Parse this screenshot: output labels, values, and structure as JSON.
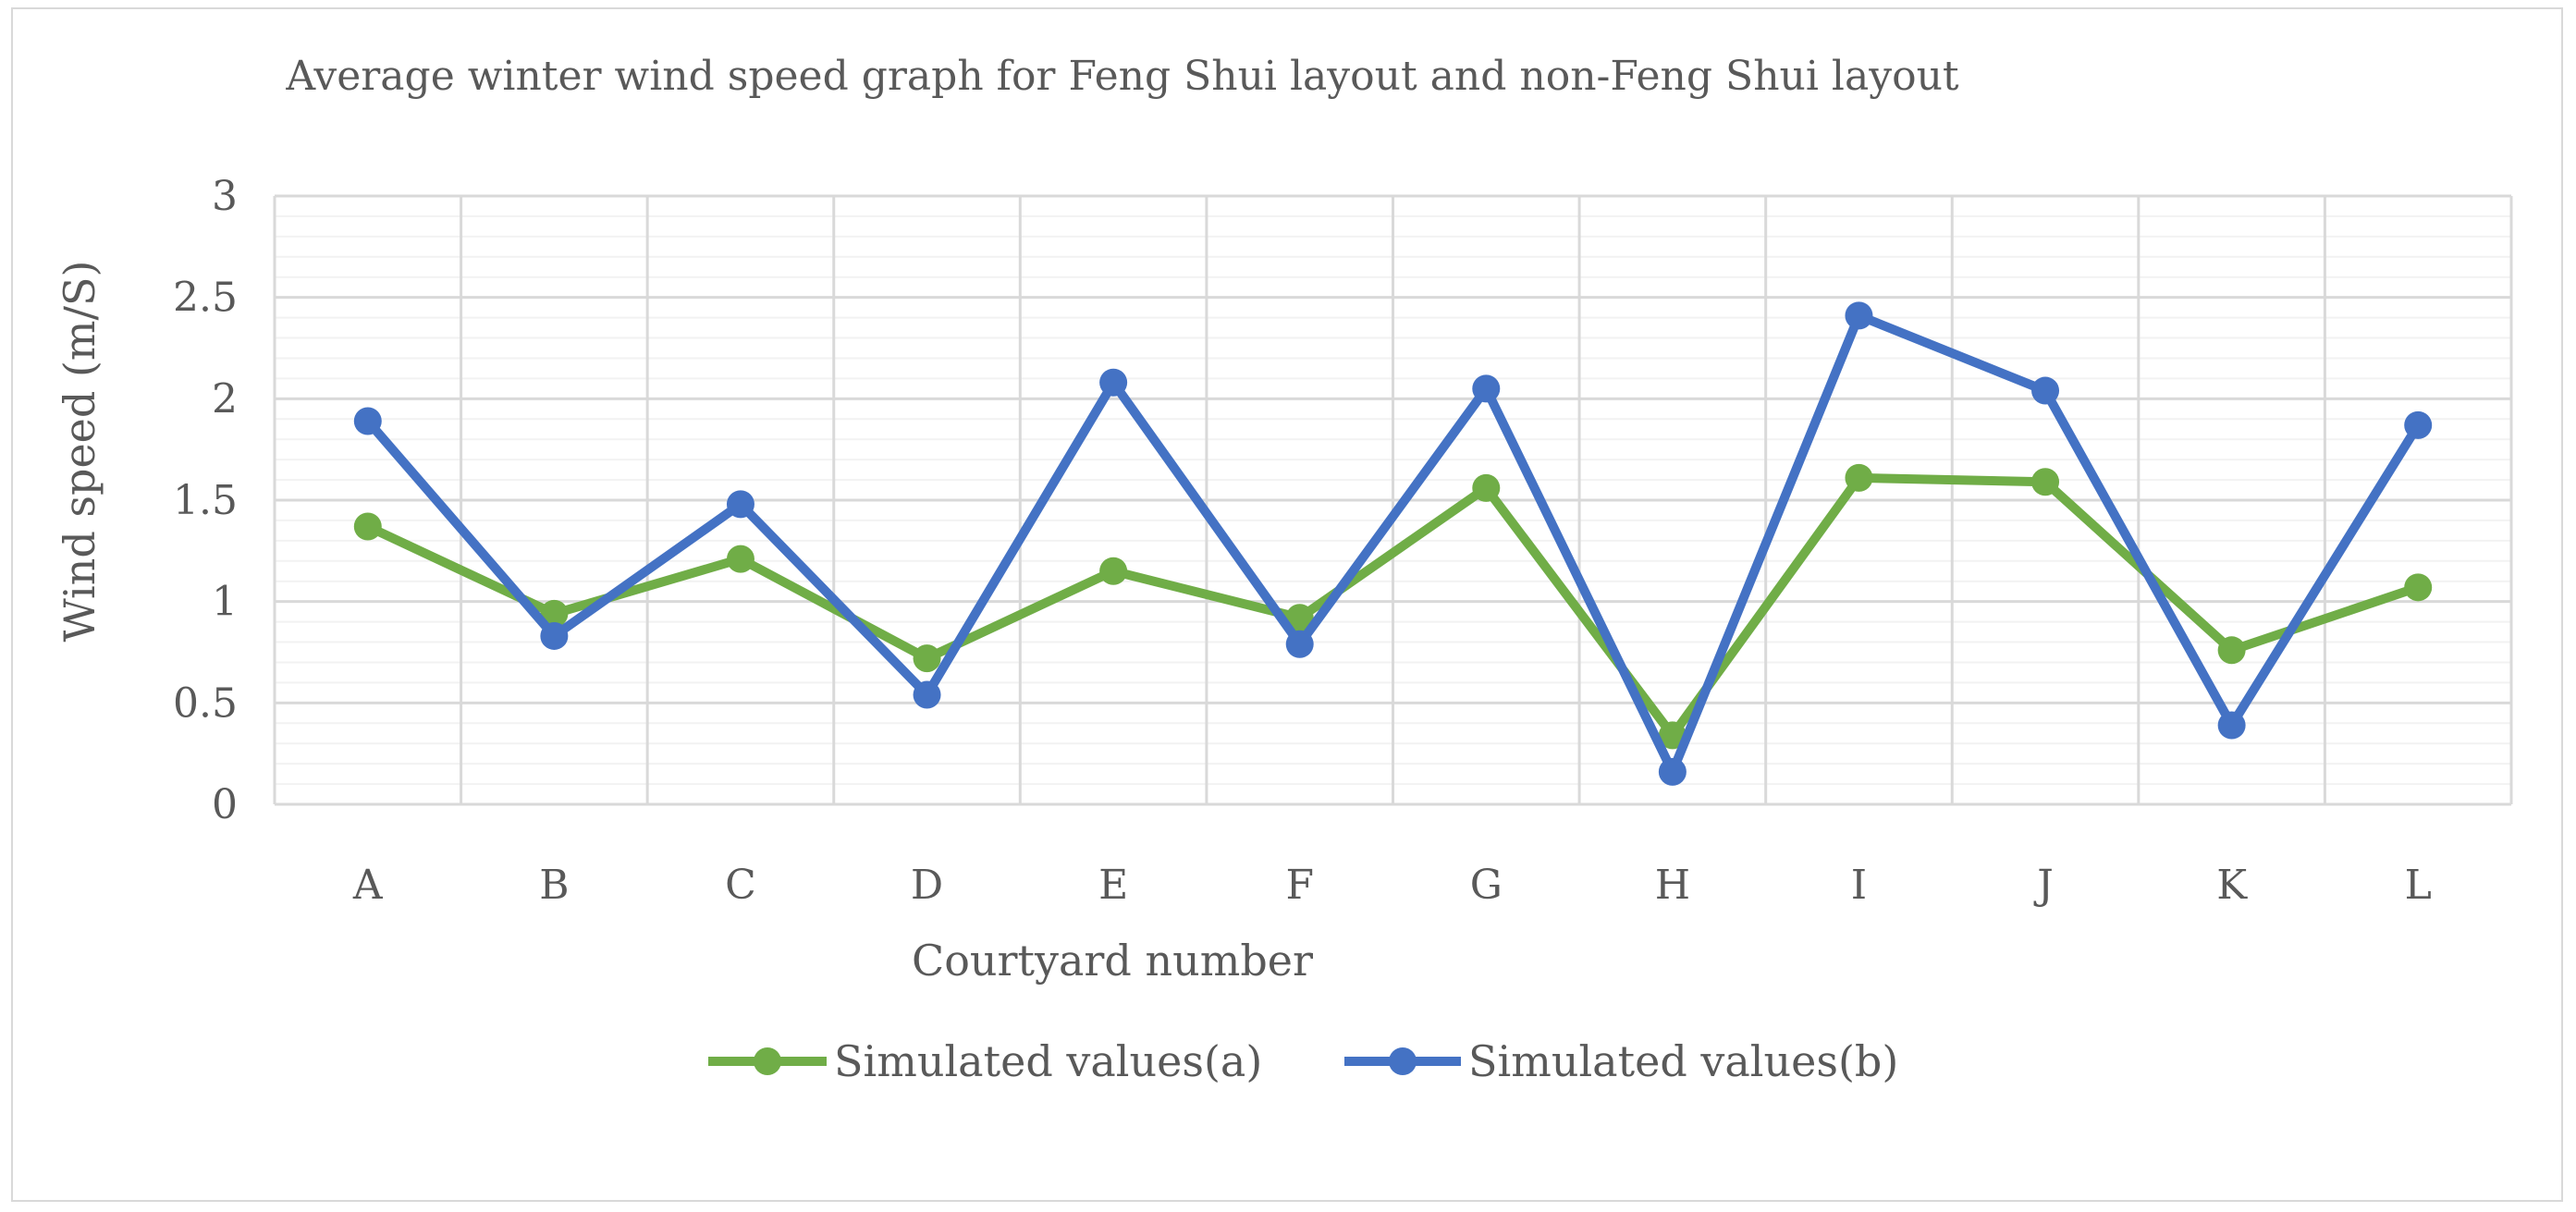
{
  "chart_data": {
    "type": "line",
    "title": "Average winter wind speed graph for Feng Shui layout and non-Feng Shui layout",
    "xlabel": "Courtyard number",
    "ylabel": "Wind speed (m/S)",
    "categories": [
      "A",
      "B",
      "C",
      "D",
      "E",
      "F",
      "G",
      "H",
      "I",
      "J",
      "K",
      "L"
    ],
    "ylim": [
      0,
      3
    ],
    "yticks": [
      "0",
      "0.5",
      "1",
      "1.5",
      "2",
      "2.5",
      "3"
    ],
    "ytick_values": [
      0,
      0.5,
      1,
      1.5,
      2,
      2.5,
      3
    ],
    "minor_y_step": 0.1,
    "grid": true,
    "legend_position": "bottom",
    "series": [
      {
        "name": "Simulated values(a)",
        "color": "#70ad47",
        "values": [
          1.37,
          0.94,
          1.21,
          0.72,
          1.15,
          0.92,
          1.56,
          0.34,
          1.61,
          1.59,
          0.76,
          1.07
        ]
      },
      {
        "name": "Simulated values(b)",
        "color": "#4472c4",
        "values": [
          1.89,
          0.83,
          1.48,
          0.54,
          2.08,
          0.79,
          2.05,
          0.16,
          2.41,
          2.04,
          0.39,
          1.87
        ]
      }
    ]
  }
}
